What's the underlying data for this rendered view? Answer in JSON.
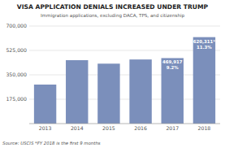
{
  "chart_data": {
    "type": "bar",
    "title": "VISA APPLICATION DENIALS INCREASED UNDER TRUMP",
    "subtitle": "Immigration applications, excluding DACA, TPS, and citizenship",
    "source": "Source: USCIS *FY 2018 is the first 9 months",
    "categories": [
      "2013",
      "2014",
      "2015",
      "2016",
      "2017",
      "2018"
    ],
    "values": [
      280000,
      455000,
      430000,
      460000,
      469917,
      620311
    ],
    "color": "#7b8fbb",
    "ylim": [
      0,
      700000
    ],
    "yticks": [
      {
        "value": 175000,
        "label": "175,000"
      },
      {
        "value": 350000,
        "label": "350,000"
      },
      {
        "value": 525000,
        "label": "525,000"
      },
      {
        "value": 700000,
        "label": "700,000"
      }
    ],
    "grid": true,
    "annotations": [
      {
        "category": "2017",
        "lines": [
          "469,917",
          "9.2%"
        ]
      },
      {
        "category": "2018",
        "lines": [
          "620,311*",
          "11.3%"
        ]
      }
    ]
  }
}
